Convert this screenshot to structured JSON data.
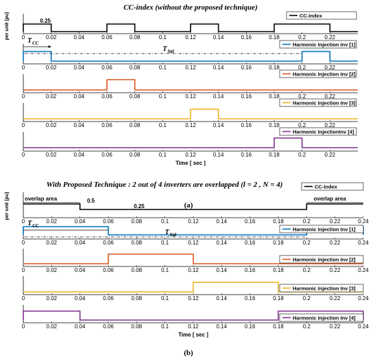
{
  "chart_data": [
    {
      "type": "line",
      "label": "(a)",
      "title": "CC-index (without the proposed technique)",
      "ylabel": "per unit (pu)",
      "xlabel": "Time [ sec ]",
      "xlim": [
        0,
        0.24
      ],
      "x_ticks": [
        "0",
        "0.02",
        "0.04",
        "0.06",
        "0.08",
        "0.1",
        "0.12",
        "0.14",
        "0.16",
        "0.18",
        "0.2",
        "0.22"
      ],
      "annotations": [
        "0.25",
        "T",
        "CC",
        "T",
        "Std"
      ],
      "series": [
        {
          "name": "CC-index",
          "color": "#000000",
          "segments": [
            [
              0,
              0.02
            ],
            [
              0.06,
              0.08
            ],
            [
              0.12,
              0.14
            ],
            [
              0.18,
              0.22
            ]
          ]
        },
        {
          "name": "Harmonic Injection Inv [1]",
          "color": "#0072BD",
          "segments": [
            [
              0,
              0.02
            ],
            [
              0.2,
              0.22
            ]
          ]
        },
        {
          "name": "Harmonic Injection Inv [2]",
          "color": "#D95319",
          "segments": [
            [
              0.06,
              0.08
            ]
          ]
        },
        {
          "name": "Harmonic Injection Inv [3]",
          "color": "#EDB120",
          "segments": [
            [
              0.12,
              0.14
            ]
          ]
        },
        {
          "name": "Harmonic InjectionInv [4]",
          "color": "#7E2F8E",
          "segments": [
            [
              0.18,
              0.2
            ]
          ]
        }
      ]
    },
    {
      "type": "line",
      "label": "(b)",
      "title": "With Proposed Technique : 2 out of 4 inverters are overlapped (l = 2 , N = 4)",
      "ylabel": "per unit (pu)",
      "xlabel": "Time [ sec ]",
      "xlim": [
        0,
        0.24
      ],
      "x_ticks": [
        "0",
        "0.02",
        "0.04",
        "0.06",
        "0.08",
        "0.1",
        "0.12",
        "0.14",
        "0.16",
        "0.18",
        "0.2",
        "0.22",
        "0.24"
      ],
      "annotations": [
        "overlap area",
        "0.5",
        "0.25",
        "overlap area",
        "T",
        "CC",
        "T",
        "Std"
      ],
      "series": [
        {
          "name": "CC-index",
          "color": "#000000",
          "segments": [
            [
              0,
              0.04
            ],
            [
              0.2,
              0.24
            ]
          ],
          "base_level": 0.25,
          "high_level": 0.5
        },
        {
          "name": "Harmonic Injection Inv [1]",
          "color": "#0072BD",
          "segments": [
            [
              0,
              0.06
            ],
            [
              0.2,
              0.24
            ]
          ]
        },
        {
          "name": "Harmonic Injection Inv [2]",
          "color": "#D95319",
          "segments": [
            [
              0.06,
              0.12
            ]
          ]
        },
        {
          "name": "Harmonic Injection Inv [3]",
          "color": "#EDB120",
          "segments": [
            [
              0.12,
              0.18
            ]
          ]
        },
        {
          "name": "Harmonic Injection Inv [4]",
          "color": "#7E2F8E",
          "segments": [
            [
              0,
              0.04
            ],
            [
              0.18,
              0.24
            ]
          ]
        }
      ]
    }
  ]
}
